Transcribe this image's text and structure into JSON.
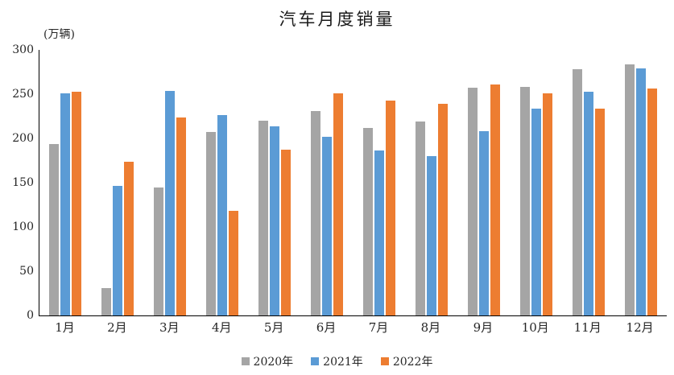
{
  "chart_data": {
    "type": "bar",
    "title": "汽车月度销量",
    "ylabel": "(万辆)",
    "xlabel": "",
    "ylim": [
      0,
      300
    ],
    "yticks": [
      0,
      50,
      100,
      150,
      200,
      250,
      300
    ],
    "grid": false,
    "legend_position": "bottom",
    "categories": [
      "1月",
      "2月",
      "3月",
      "4月",
      "5月",
      "6月",
      "7月",
      "8月",
      "9月",
      "10月",
      "11月",
      "12月"
    ],
    "series": [
      {
        "name": "2020年",
        "color": "#A5A5A5",
        "values": [
          194,
          31,
          145,
          207,
          220,
          231,
          212,
          219,
          257,
          258,
          278,
          284
        ]
      },
      {
        "name": "2021年",
        "color": "#5B9BD5",
        "values": [
          251,
          146,
          254,
          226,
          214,
          202,
          186,
          180,
          208,
          234,
          253,
          279
        ]
      },
      {
        "name": "2022年",
        "color": "#ED7D31",
        "values": [
          253,
          174,
          224,
          118,
          187,
          251,
          243,
          239,
          261,
          251,
          234,
          256
        ]
      }
    ]
  }
}
